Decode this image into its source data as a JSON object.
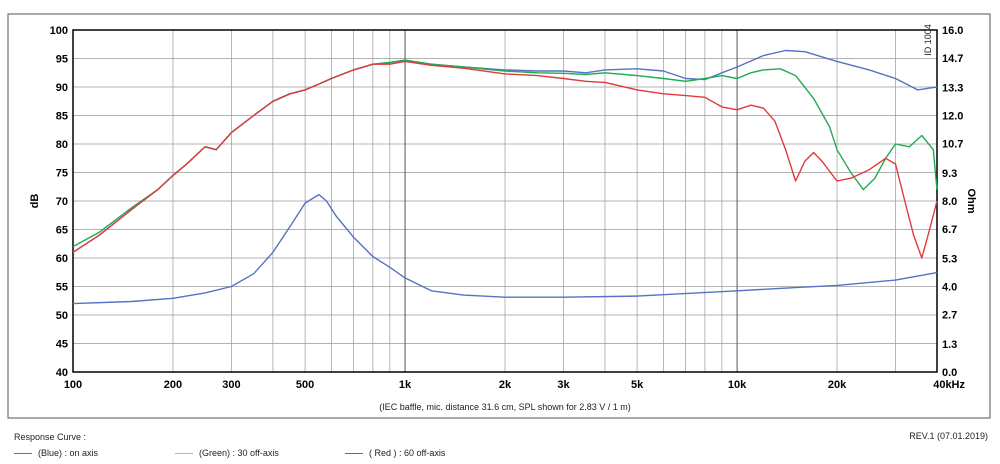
{
  "chart_data": {
    "type": "line",
    "caption": "(IEC baffle, mic. distance 31.6 cm, SPL shown for 2.83 V / 1 m)",
    "xlabel": "",
    "ylabel": "dB",
    "y2label": "Ohm",
    "x_scale": "log",
    "xlim": [
      100,
      40000
    ],
    "ylim": [
      40,
      100
    ],
    "y2lim": [
      0.0,
      16.0
    ],
    "grid": true,
    "x_tick_labels": [
      {
        "value": 100,
        "label": "100"
      },
      {
        "value": 200,
        "label": "200"
      },
      {
        "value": 300,
        "label": "300"
      },
      {
        "value": 500,
        "label": "500"
      },
      {
        "value": 1000,
        "label": "1k"
      },
      {
        "value": 2000,
        "label": "2k"
      },
      {
        "value": 3000,
        "label": "3k"
      },
      {
        "value": 5000,
        "label": "5k"
      },
      {
        "value": 10000,
        "label": "10k"
      },
      {
        "value": 20000,
        "label": "20k"
      },
      {
        "value": 40000,
        "label": "40kHz"
      }
    ],
    "y_ticks": [
      40,
      45,
      50,
      55,
      60,
      65,
      70,
      75,
      80,
      85,
      90,
      95,
      100
    ],
    "y2_ticks": [
      "0.0",
      "1.3",
      "2.7",
      "4.0",
      "5.3",
      "6.7",
      "8.0",
      "9.3",
      "10.7",
      "12.0",
      "13.3",
      "14.7",
      "16.0"
    ],
    "series": [
      {
        "name": "on axis",
        "color": "#5572c4",
        "axis": "left",
        "x": [
          100,
          120,
          150,
          180,
          200,
          220,
          250,
          270,
          300,
          350,
          400,
          450,
          500,
          550,
          600,
          700,
          800,
          900,
          1000,
          1200,
          1500,
          2000,
          2500,
          3000,
          3500,
          4000,
          5000,
          6000,
          7000,
          8000,
          9000,
          10000,
          12000,
          14000,
          16000,
          20000,
          25000,
          30000,
          35000,
          38000,
          40000
        ],
        "values": [
          61,
          64,
          68.5,
          72,
          74.5,
          76.5,
          79.5,
          79,
          82,
          85,
          87.5,
          88.8,
          89.5,
          90.5,
          91.5,
          93,
          94,
          94.3,
          94.7,
          94,
          93.5,
          93,
          92.8,
          92.8,
          92.5,
          93,
          93.2,
          92.8,
          91.5,
          91.3,
          92.5,
          93.5,
          95.5,
          96.4,
          96.2,
          94.5,
          93,
          91.5,
          89.5,
          89.8,
          90
        ]
      },
      {
        "name": "30 off-axis",
        "color": "#22aa55",
        "axis": "left",
        "x": [
          100,
          120,
          150,
          180,
          200,
          220,
          250,
          270,
          300,
          350,
          400,
          450,
          500,
          550,
          600,
          700,
          800,
          900,
          1000,
          1200,
          1500,
          2000,
          2500,
          3000,
          3500,
          4000,
          5000,
          6000,
          7000,
          8000,
          9000,
          10000,
          11000,
          12000,
          13500,
          15000,
          17000,
          19000,
          20000,
          22000,
          24000,
          26000,
          28000,
          30000,
          33000,
          36000,
          39000,
          40000
        ],
        "values": [
          62,
          64.5,
          68.8,
          72,
          74.5,
          76.5,
          79.5,
          79,
          82,
          85,
          87.5,
          88.8,
          89.5,
          90.5,
          91.5,
          93,
          94,
          94.3,
          94.7,
          94,
          93.5,
          92.8,
          92.5,
          92.4,
          92.2,
          92.5,
          92,
          91.5,
          91,
          91.5,
          92,
          91.5,
          92.5,
          93,
          93.2,
          92,
          88,
          83,
          79,
          75,
          72,
          74,
          77.5,
          80,
          79.5,
          81.5,
          79,
          72
        ]
      },
      {
        "name": "60 off-axis",
        "color": "#e03a3a",
        "axis": "left",
        "x": [
          100,
          120,
          150,
          180,
          200,
          220,
          250,
          270,
          300,
          350,
          400,
          450,
          500,
          550,
          600,
          700,
          800,
          900,
          1000,
          1200,
          1500,
          2000,
          2500,
          3000,
          3500,
          4000,
          5000,
          6000,
          7000,
          8000,
          9000,
          10000,
          11000,
          12000,
          13000,
          14000,
          15000,
          16000,
          17000,
          18000,
          20000,
          22000,
          25000,
          28000,
          30000,
          32000,
          34000,
          36000,
          38000,
          40000
        ],
        "values": [
          61,
          64,
          68.5,
          72,
          74.5,
          76.5,
          79.5,
          79,
          82,
          85,
          87.5,
          88.8,
          89.5,
          90.5,
          91.5,
          93,
          94,
          94,
          94.5,
          93.8,
          93.3,
          92.3,
          92,
          91.5,
          91,
          90.8,
          89.5,
          88.8,
          88.5,
          88.2,
          86.5,
          86,
          86.8,
          86.3,
          84,
          79,
          73.5,
          77,
          78.5,
          77,
          73.5,
          74,
          75.5,
          77.5,
          76.5,
          70,
          64,
          60,
          65,
          70
        ]
      },
      {
        "name": "impedance",
        "color": "#5572c4",
        "axis": "right",
        "x": [
          100,
          150,
          200,
          250,
          300,
          350,
          400,
          450,
          500,
          550,
          580,
          620,
          700,
          800,
          900,
          1000,
          1200,
          1500,
          2000,
          3000,
          5000,
          10000,
          15000,
          20000,
          30000,
          40000
        ],
        "values": [
          3.2,
          3.3,
          3.45,
          3.7,
          4.0,
          4.6,
          5.6,
          6.8,
          7.9,
          8.3,
          8.0,
          7.3,
          6.3,
          5.4,
          4.9,
          4.4,
          3.8,
          3.6,
          3.5,
          3.5,
          3.55,
          3.8,
          3.95,
          4.05,
          4.3,
          4.65
        ]
      }
    ]
  },
  "legend": {
    "title": "Response Curve :",
    "items": [
      {
        "label": "(Blue)  : on axis",
        "color": "#5572c4"
      },
      {
        "label": "(Green) : 30 off-axis",
        "color": "#a7d34a"
      },
      {
        "label": "( Red )  : 60 off-axis",
        "color": "#e03a3a"
      }
    ]
  },
  "revision": "REV.1 (07.01.2019)",
  "corner_mark": "ID 1004"
}
